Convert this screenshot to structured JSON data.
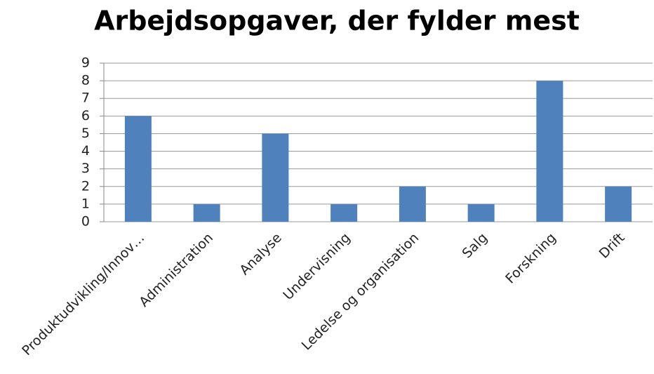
{
  "chart_data": {
    "type": "bar",
    "title": "Arbejdsopgaver, der fylder mest",
    "categories": [
      "Produktudvikling/Innov…",
      "Administration",
      "Analyse",
      "Undervisning",
      "Ledelse og organisation",
      "Salg",
      "Forskning",
      "Drift"
    ],
    "values": [
      6,
      1,
      5,
      1,
      2,
      1,
      8,
      2
    ],
    "color": "#4f81bd",
    "ylim": [
      0,
      9
    ],
    "yticks": [
      0,
      1,
      2,
      3,
      4,
      5,
      6,
      7,
      8,
      9
    ],
    "grid": true
  }
}
